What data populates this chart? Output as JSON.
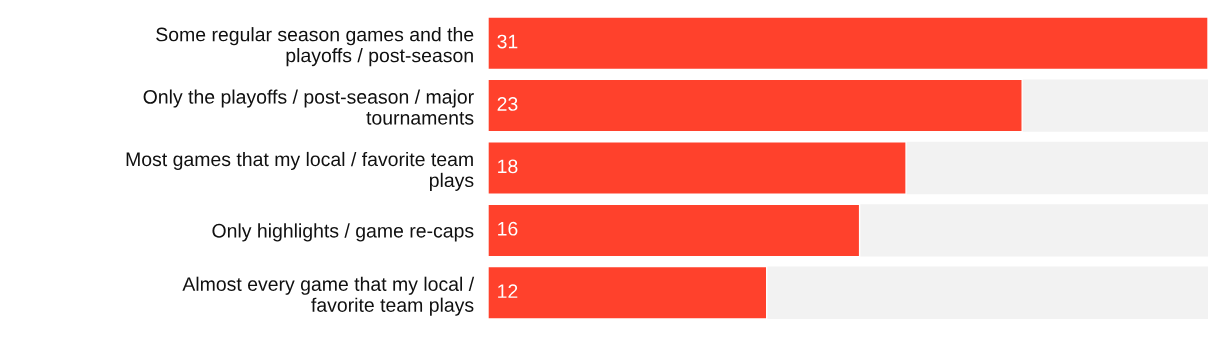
{
  "chart_data": {
    "type": "bar",
    "orientation": "horizontal",
    "categories": [
      "Some regular season games and the\nplayoffs / post-season",
      "Only the playoffs / post-season / major\ntournaments",
      "Most games that my local / favorite team\nplays",
      "Only highlights / game re-caps",
      "Almost every game that my local /\nfavorite team plays"
    ],
    "values": [
      31,
      23,
      18,
      16,
      12
    ],
    "color": "#ff412c",
    "xlim": [
      0,
      31
    ],
    "data_labels": true,
    "tick_labels": "y"
  }
}
